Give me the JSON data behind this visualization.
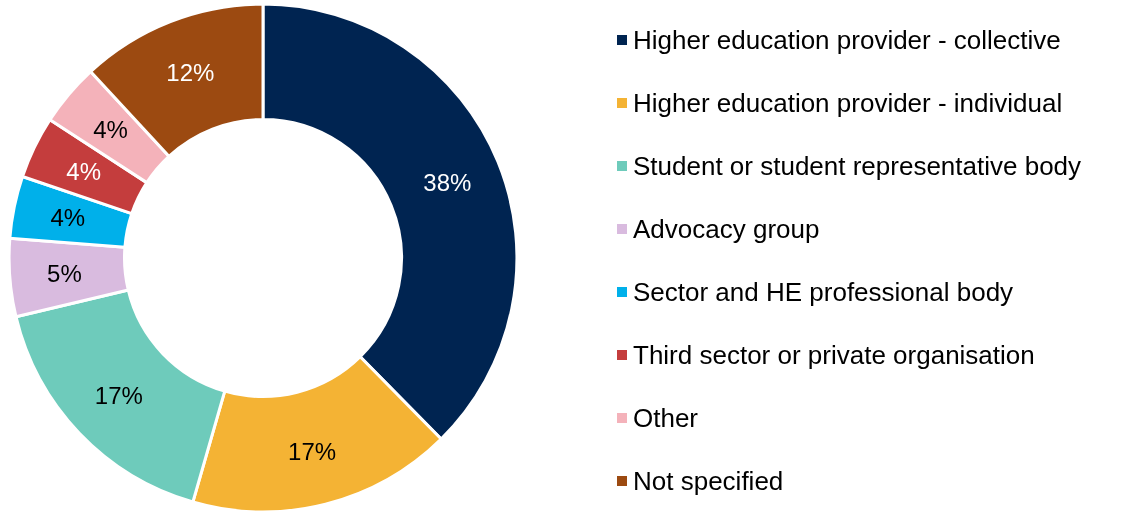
{
  "chart_data": {
    "type": "donut",
    "categories": [
      "Higher education provider - collective",
      "Higher education provider - individual",
      "Student or student representative body",
      "Advocacy group",
      "Sector and HE professional body",
      "Third sector or private organisation",
      "Other",
      "Not specified"
    ],
    "values": [
      38,
      17,
      17,
      5,
      4,
      4,
      4,
      12
    ],
    "value_labels": [
      "38%",
      "17%",
      "17%",
      "5%",
      "4%",
      "4%",
      "4%",
      "12%"
    ],
    "colors": [
      "#002451",
      "#f4b334",
      "#6ecbbb",
      "#d9bbdf",
      "#00b0ea",
      "#c43d3d",
      "#f4b2ba",
      "#9c4a11"
    ],
    "legend": "right"
  }
}
